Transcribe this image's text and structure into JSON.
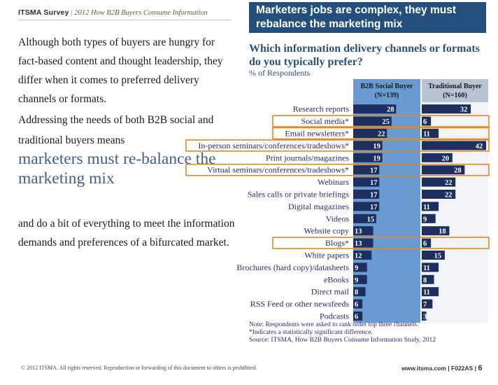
{
  "header": {
    "brand": "ITSMA Survey",
    "sep": "|",
    "subtitle": "2012 How B2B Buyers Consume Information"
  },
  "banner": {
    "line1": "Marketers jobs are complex, they must",
    "line2": "rebalance the marketing mix"
  },
  "left": {
    "intro": "Although both types of buyers are hungry for fact-based content and thought leadership, they differ when it comes to preferred delivery channels or formats.",
    "para2": "Addressing the needs of both B2B social and traditional buyers means",
    "big": "marketers must re-balance the marketing mix",
    "para3": "and do a bit of everything to meet the information demands and preferences of a bifurcated market."
  },
  "question": "Which information delivery channels or formats do you typically prefer?",
  "question_sub": "% of Respondents",
  "chart_data": {
    "type": "bar",
    "orientation": "horizontal",
    "categories": [
      "Research reports",
      "Social media*",
      "Email newsletters*",
      "In-person seminars/conferences/tradeshows*",
      "Print journals/magazines",
      "Virtual seminars/conferences/tradeshows*",
      "Webinars",
      "Sales calls or private briefings",
      "Digital magazines",
      "Videos",
      "Website copy",
      "Blogs*",
      "White papers",
      "Brochures (hard copy)/datasheets",
      "eBooks",
      "Direct mail",
      "RSS Feed or other newsfeeds",
      "Podcasts"
    ],
    "series": [
      {
        "name": "B2B Social Buyer",
        "n": "(N=139)",
        "values": [
          28,
          25,
          22,
          19,
          19,
          17,
          17,
          17,
          17,
          15,
          13,
          13,
          12,
          9,
          9,
          8,
          6,
          6
        ]
      },
      {
        "name": "Traditional Buyer",
        "n": "(N=160)",
        "values": [
          32,
          6,
          11,
          42,
          20,
          28,
          22,
          22,
          11,
          9,
          18,
          6,
          15,
          11,
          8,
          11,
          7,
          3
        ]
      }
    ],
    "highlighted": [
      "Social media*",
      "Email newsletters*",
      "In-person seminars/conferences/tradeshows*",
      "Virtual seminars/conferences/tradeshows*",
      "Blogs*"
    ],
    "colors": {
      "panel": "#6a9ad2",
      "bar_light": "#8aa5c8",
      "bar_dark": "#1c2f5e",
      "highlight": "#e08a1e"
    },
    "xlim": [
      0,
      45
    ]
  },
  "note": {
    "line1": "Note: Respondents were asked to rank order top three channels.",
    "line2": "*Indicates a statistically significant difference.",
    "line3": "Source: ITSMA, How B2B Buyers Consume Information Study, 2012"
  },
  "footer": {
    "left": "© 2012 ITSMA. All rights reserved. Reproduction or forwarding of this document to others is prohibited.",
    "right": "www.itsma.com | F022AS |",
    "page": "6"
  }
}
